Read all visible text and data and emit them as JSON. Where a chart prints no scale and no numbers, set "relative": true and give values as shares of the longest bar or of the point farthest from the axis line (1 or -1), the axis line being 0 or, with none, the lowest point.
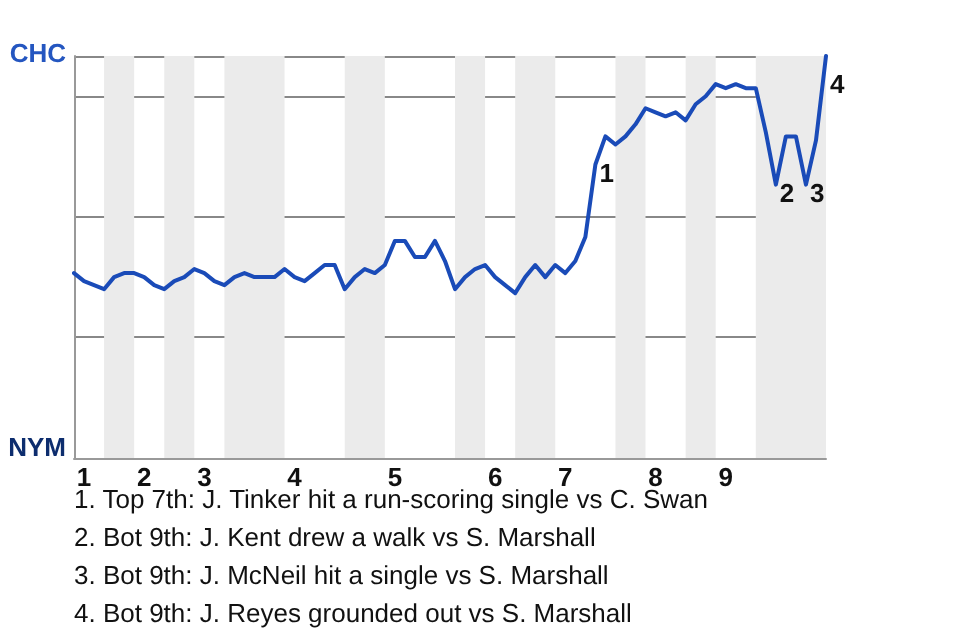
{
  "chart_data": {
    "type": "line",
    "relative": true,
    "categories": [
      null,
      "1",
      null,
      null,
      null,
      null,
      null,
      "2",
      null,
      null,
      null,
      null,
      null,
      "3",
      null,
      null,
      null,
      null,
      null,
      null,
      null,
      null,
      "4",
      null,
      null,
      null,
      null,
      null,
      null,
      null,
      null,
      null,
      "5",
      null,
      null,
      null,
      null,
      null,
      null,
      null,
      null,
      null,
      "6",
      null,
      null,
      null,
      null,
      null,
      null,
      "7",
      null,
      null,
      null,
      null,
      null,
      null,
      null,
      null,
      "8",
      null,
      null,
      null,
      null,
      null,
      null,
      "9",
      null,
      null,
      null,
      null,
      null,
      null,
      null,
      null,
      null,
      null
    ],
    "series": [
      {
        "color": "#1a4bb8",
        "values": [
          0.46,
          0.44,
          0.43,
          0.42,
          0.45,
          0.46,
          0.46,
          0.45,
          0.43,
          0.42,
          0.44,
          0.45,
          0.47,
          0.46,
          0.44,
          0.43,
          0.45,
          0.46,
          0.45,
          0.45,
          0.45,
          0.47,
          0.45,
          0.44,
          0.46,
          0.48,
          0.48,
          0.42,
          0.45,
          0.47,
          0.46,
          0.48,
          0.54,
          0.54,
          0.5,
          0.5,
          0.54,
          0.49,
          0.42,
          0.45,
          0.47,
          0.48,
          0.45,
          0.43,
          0.41,
          0.45,
          0.48,
          0.45,
          0.48,
          0.46,
          0.49,
          0.55,
          0.73,
          0.8,
          0.78,
          0.8,
          0.83,
          0.87,
          0.86,
          0.85,
          0.86,
          0.84,
          0.88,
          0.9,
          0.93,
          0.92,
          0.93,
          0.92,
          0.92,
          0.81,
          0.68,
          0.8,
          0.8,
          0.68,
          0.79,
          1.0
        ]
      }
    ],
    "grid": "y",
    "marker": "none",
    "annotations": [
      {
        "text": "1",
        "y": 0.73
      },
      {
        "text": "2",
        "y": 0.68
      },
      {
        "text": "3",
        "y": 0.68
      },
      "4",
      "CHC",
      "NYM",
      "1. Top 7th: J. Tinker hit a run-scoring single vs C. Swan",
      "2. Bot 9th: J. Kent drew a walk vs S. Marshall",
      "3. Bot 9th: J. McNeil hit a single vs S. Marshall",
      "4. Bot 9th: J. Reyes grounded out vs S. Marshall"
    ]
  }
}
